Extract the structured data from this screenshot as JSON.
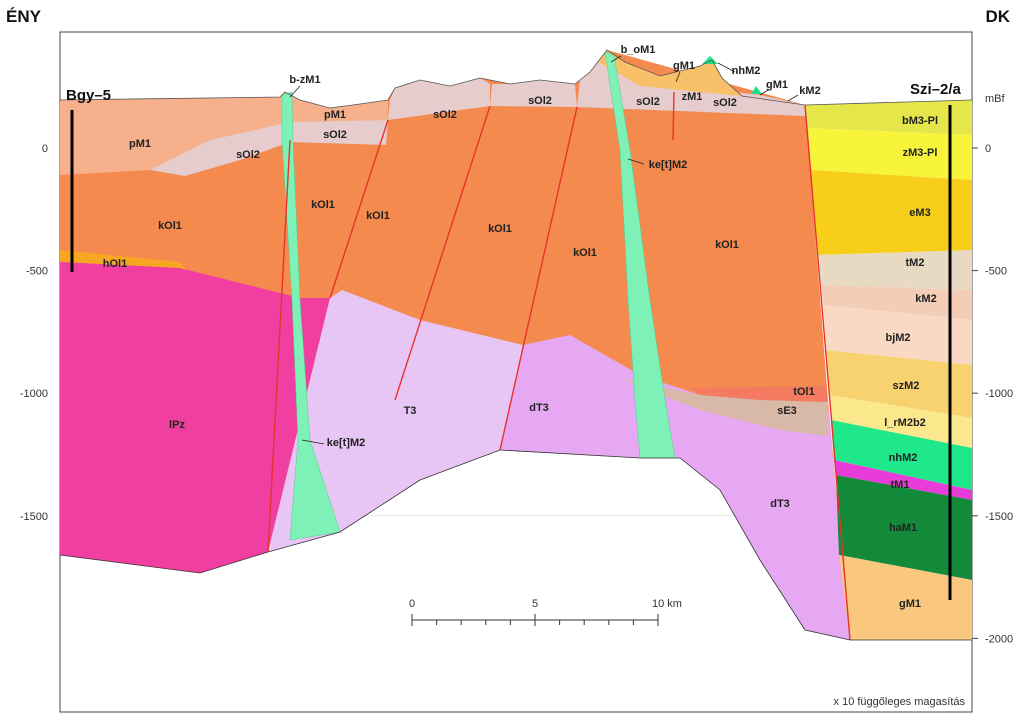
{
  "header": {
    "left": "ÉNY",
    "right": "DK"
  },
  "wells": [
    {
      "label": "Bgy–5"
    },
    {
      "label": "Szi–2/a"
    }
  ],
  "axis": {
    "unit": "mBf",
    "left_ticks": [
      0,
      -500,
      -1000,
      -1500
    ],
    "right_ticks": [
      0,
      -500,
      -1000,
      -1500,
      -2000
    ]
  },
  "units": [
    "pM1",
    "pM1",
    "sOl2",
    "sOl2",
    "sOl2",
    "sOl2",
    "sOl2",
    "sOl2",
    "zM1",
    "b-zM1",
    "b_oM1",
    "gM1",
    "nhM2",
    "gM1",
    "kM2",
    "kOl1",
    "kOl1",
    "kOl1",
    "kOl1",
    "kOl1",
    "kOl1",
    "hOl1",
    "ke[t]M2",
    "ke[t]M2",
    "lPz",
    "T3",
    "dT3",
    "dT3",
    "tOl1",
    "sE3",
    "bM3-Pl",
    "zM3-Pl",
    "eM3",
    "tM2",
    "kM2",
    "bjM2",
    "szM2",
    "l_rM2b2",
    "nhM2",
    "tM1",
    "haM1",
    "gM1"
  ],
  "scale_bar": {
    "labels": [
      "0",
      "5",
      "10 km"
    ]
  },
  "note": "x 10 függőleges magasítás"
}
